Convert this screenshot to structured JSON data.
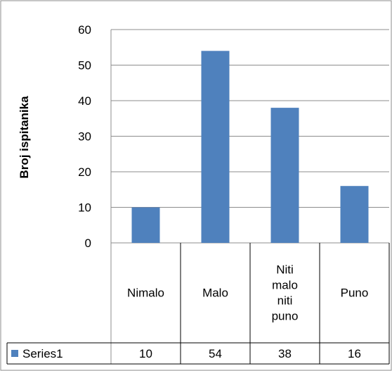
{
  "chart_data": {
    "type": "bar",
    "categories": [
      [
        "Nimalo"
      ],
      [
        "Malo"
      ],
      [
        "Niti",
        "malo",
        "niti",
        "puno"
      ],
      [
        "Puno"
      ]
    ],
    "series": [
      {
        "name": "Series1",
        "values": [
          10,
          54,
          38,
          16
        ],
        "color": "#4f81bd"
      }
    ],
    "title": "",
    "xlabel": "",
    "ylabel": "Broj ispitanika",
    "ylim": [
      0,
      60
    ],
    "yticks": [
      "0",
      "10",
      "20",
      "30",
      "40",
      "50",
      "60"
    ],
    "grid": true,
    "legend": "data-table",
    "data_table": {
      "legend_label": "Series1",
      "values": [
        "10",
        "54",
        "38",
        "16"
      ]
    }
  }
}
